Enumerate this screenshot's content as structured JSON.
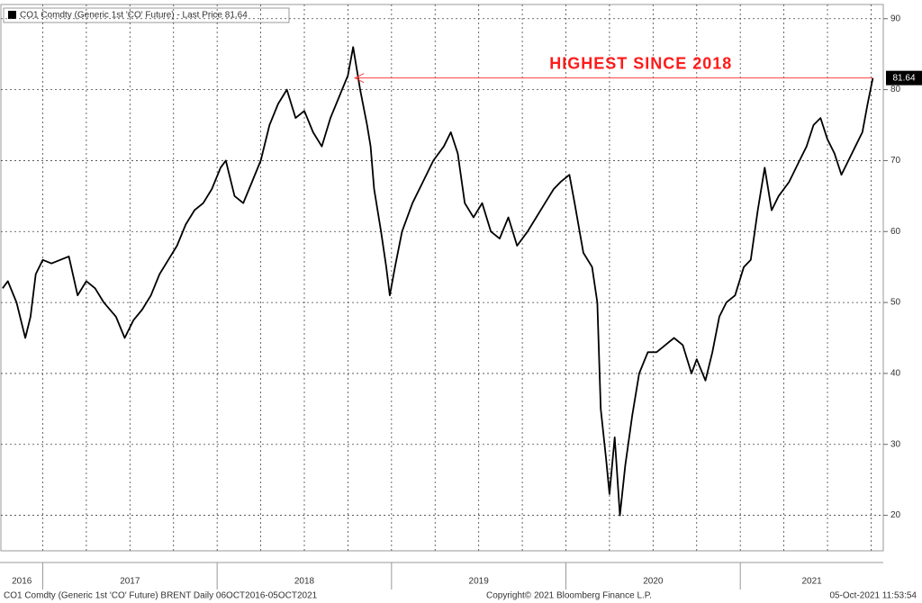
{
  "chart_data": {
    "type": "line",
    "title": "CO1 Comdty (Generic 1st 'CO' Future) - Last Price 81.64",
    "footer_left": "CO1 Comdty (Generic 1st 'CO' Future) BRENT  Daily 06OCT2016-05OCT2021",
    "footer_center": "Copyright© 2021 Bloomberg Finance L.P.",
    "footer_right": "05-Oct-2021 11:53:54",
    "last_price": 81.64,
    "annotation": {
      "text": "HIGHEST SINCE 2018",
      "x": [
        2018.79,
        2021.76
      ],
      "y": 81.64
    },
    "year_labels": [
      2016,
      2017,
      2018,
      2019,
      2020,
      2021
    ],
    "xlim": [
      2016.76,
      2021.82
    ],
    "xticks": [
      2017,
      2018,
      2019,
      2020,
      2021
    ],
    "ylim": [
      15,
      92
    ],
    "yticks": [
      20,
      30,
      40,
      50,
      60,
      70,
      80,
      90
    ],
    "grid": true,
    "series": [
      {
        "name": "CO1 Comdty",
        "color": "#000000",
        "x": [
          2016.77,
          2016.8,
          2016.85,
          2016.88,
          2016.9,
          2016.93,
          2016.96,
          2017.0,
          2017.05,
          2017.1,
          2017.15,
          2017.2,
          2017.25,
          2017.3,
          2017.35,
          2017.42,
          2017.47,
          2017.52,
          2017.57,
          2017.62,
          2017.67,
          2017.72,
          2017.77,
          2017.82,
          2017.87,
          2017.92,
          2017.97,
          2018.02,
          2018.05,
          2018.1,
          2018.15,
          2018.2,
          2018.25,
          2018.3,
          2018.35,
          2018.4,
          2018.45,
          2018.5,
          2018.55,
          2018.6,
          2018.65,
          2018.7,
          2018.75,
          2018.78,
          2018.82,
          2018.86,
          2018.88,
          2018.9,
          2018.94,
          2018.97,
          2018.99,
          2019.02,
          2019.06,
          2019.12,
          2019.18,
          2019.24,
          2019.3,
          2019.34,
          2019.38,
          2019.42,
          2019.47,
          2019.52,
          2019.57,
          2019.62,
          2019.67,
          2019.72,
          2019.78,
          2019.83,
          2019.88,
          2019.93,
          2019.97,
          2020.02,
          2020.05,
          2020.1,
          2020.15,
          2020.18,
          2020.2,
          2020.23,
          2020.25,
          2020.28,
          2020.31,
          2020.34,
          2020.38,
          2020.42,
          2020.47,
          2020.52,
          2020.57,
          2020.62,
          2020.67,
          2020.72,
          2020.75,
          2020.8,
          2020.84,
          2020.88,
          2020.92,
          2020.97,
          2021.02,
          2021.06,
          2021.1,
          2021.14,
          2021.18,
          2021.22,
          2021.28,
          2021.34,
          2021.38,
          2021.42,
          2021.46,
          2021.5,
          2021.54,
          2021.58,
          2021.62,
          2021.66,
          2021.7,
          2021.73,
          2021.76
        ],
        "values": [
          52,
          53,
          50,
          47,
          45,
          48,
          54,
          56,
          55.5,
          56,
          56.5,
          51,
          53,
          52,
          50,
          48,
          45,
          47.5,
          49,
          51,
          54,
          56,
          58,
          61,
          63,
          64,
          66,
          69,
          70,
          65,
          64,
          67,
          70,
          75,
          78,
          80,
          76,
          77,
          74,
          72,
          76,
          79,
          82,
          86,
          80,
          75,
          72,
          66,
          60,
          55,
          51,
          55,
          60,
          64,
          67,
          70,
          72,
          74,
          71,
          64,
          62,
          64,
          60,
          59,
          62,
          58,
          60,
          62,
          64,
          66,
          67,
          68,
          64,
          57,
          55,
          50,
          35,
          28,
          23,
          31,
          20,
          27,
          34,
          40,
          43,
          43,
          44,
          45,
          44,
          40,
          42,
          39,
          43,
          48,
          50,
          51,
          55,
          56,
          63,
          69,
          63,
          65,
          67,
          70,
          72,
          75,
          76,
          73,
          71,
          68,
          70,
          72,
          74,
          78,
          81.64
        ]
      }
    ]
  }
}
